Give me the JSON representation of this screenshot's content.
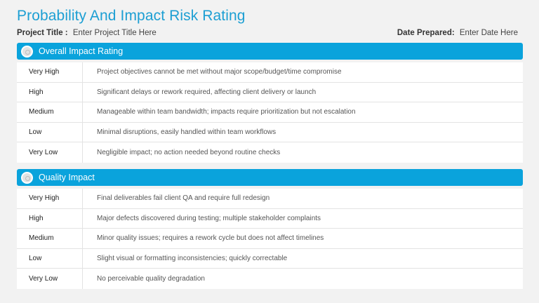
{
  "title": "Probability And Impact Risk Rating",
  "meta": {
    "project_label": "Project Title :",
    "project_value": "Enter Project Title Here",
    "date_label": "Date Prepared:",
    "date_value": "Enter Date Here"
  },
  "sections": [
    {
      "title": "Overall Impact Rating",
      "icon": "circle-badge-icon",
      "rows": [
        {
          "level": "Very High",
          "desc": "Project objectives cannot be met without major scope/budget/time compromise"
        },
        {
          "level": "High",
          "desc": "Significant delays or rework required, affecting client delivery or launch"
        },
        {
          "level": "Medium",
          "desc": "Manageable within team bandwidth; impacts require prioritization but not escalation"
        },
        {
          "level": "Low",
          "desc": "Minimal disruptions, easily handled within team workflows"
        },
        {
          "level": "Very Low",
          "desc": "Negligible impact; no action needed beyond routine checks"
        }
      ]
    },
    {
      "title": "Quality Impact",
      "icon": "circle-badge-icon",
      "rows": [
        {
          "level": "Very High",
          "desc": "Final deliverables fail client QA and require full redesign"
        },
        {
          "level": "High",
          "desc": "Major defects discovered during testing; multiple stakeholder complaints"
        },
        {
          "level": "Medium",
          "desc": "Minor quality issues; requires a rework cycle but does not affect timelines"
        },
        {
          "level": "Low",
          "desc": "Slight visual or formatting inconsistencies; quickly correctable"
        },
        {
          "level": "Very Low",
          "desc": "No perceivable quality degradation"
        }
      ]
    }
  ],
  "colors": {
    "accent": "#0aa3dc",
    "title": "#1d9fd3",
    "background": "#f2f2f2"
  }
}
